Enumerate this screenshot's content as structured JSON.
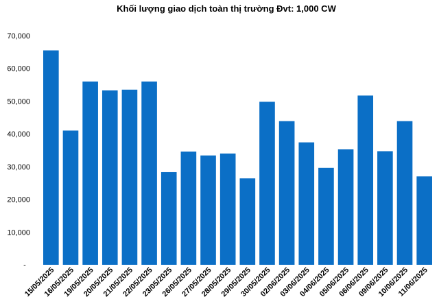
{
  "chart_data": {
    "type": "bar",
    "title": "Khối lượng giao dịch toàn thị trường Đvt: 1,000 CW",
    "xlabel": "",
    "ylabel": "",
    "ylim": [
      0,
      70000
    ],
    "grid": false,
    "legend": "none",
    "bar_color": "#0b6fc6",
    "yticks": [
      "-",
      "10,000",
      "20,000",
      "30,000",
      "40,000",
      "50,000",
      "60,000",
      "70,000"
    ],
    "categories": [
      "15/05/2025",
      "16/05/2025",
      "19/05/2025",
      "20/05/2025",
      "21/05/2025",
      "22/05/2025",
      "23/05/2025",
      "26/05/2025",
      "27/05/2025",
      "28/05/2025",
      "29/05/2025",
      "30/05/2025",
      "02/06/2025",
      "03/06/2025",
      "04/06/2025",
      "05/06/2025",
      "06/06/2025",
      "09/06/2025",
      "10/06/2025",
      "11/06/2025"
    ],
    "values": [
      65500,
      41000,
      56000,
      53300,
      53500,
      56000,
      28300,
      34600,
      33400,
      34000,
      26400,
      49800,
      43900,
      37400,
      29600,
      35300,
      51700,
      34700,
      43900,
      27000
    ]
  }
}
